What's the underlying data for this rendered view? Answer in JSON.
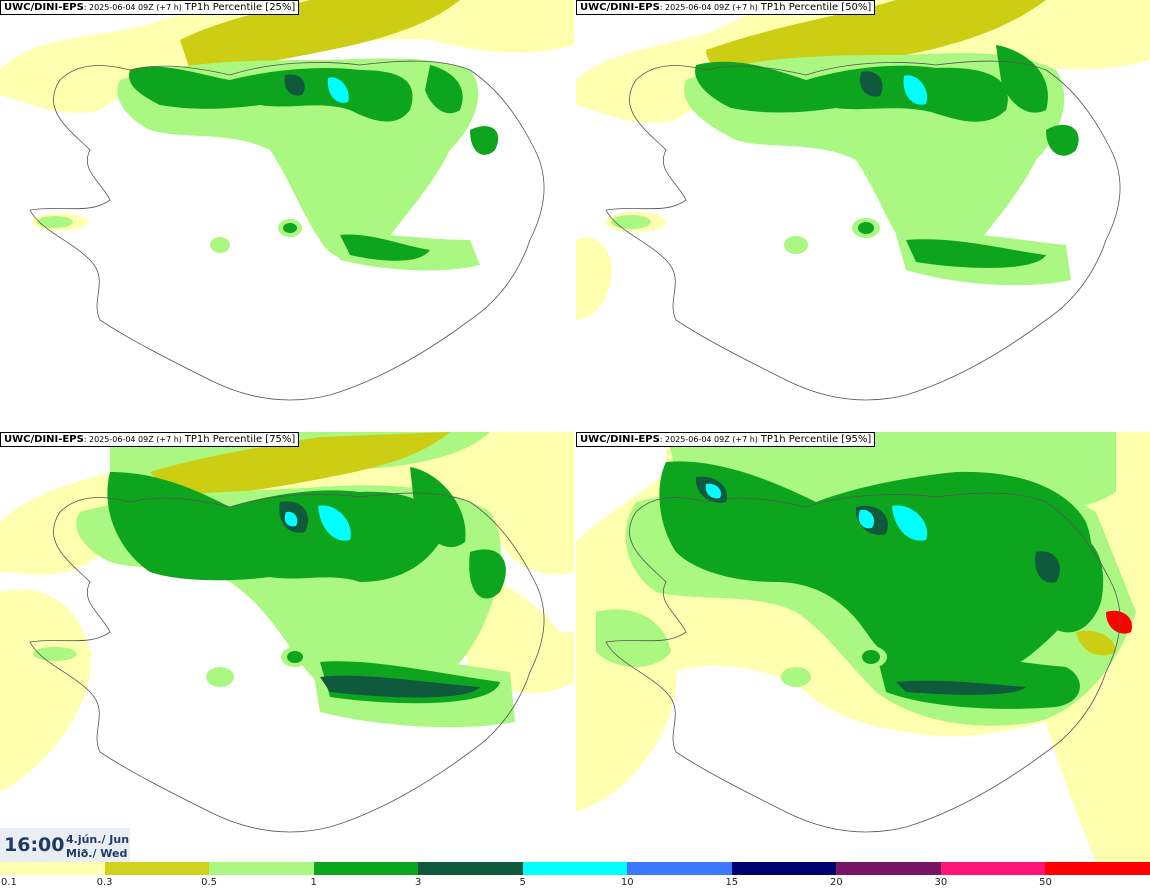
{
  "panels": [
    {
      "source": "UWC/DINI-EPS",
      "meta": ": 2025-06-04 09Z (+7 h)",
      "percentile": "TP1h Percentile [25%]"
    },
    {
      "source": "UWC/DINI-EPS",
      "meta": ": 2025-06-04 09Z (+7 h)",
      "percentile": "TP1h Percentile [50%]"
    },
    {
      "source": "UWC/DINI-EPS",
      "meta": ": 2025-06-04 09Z (+7 h)",
      "percentile": "TP1h Percentile [75%]"
    },
    {
      "source": "UWC/DINI-EPS",
      "meta": ": 2025-06-04 09Z (+7 h)",
      "percentile": "TP1h Percentile [95%]"
    }
  ],
  "valid_time": {
    "time": "16:00",
    "date_line1": "4.jún./ Jun",
    "date_line2": "Mið./ Wed"
  },
  "legend": {
    "ticks": [
      "0.1",
      "0.3",
      "0.5",
      "1",
      "3",
      "5",
      "10",
      "15",
      "20",
      "30",
      "50"
    ],
    "colors": [
      "#ffffb0",
      "#d2d21e",
      "#aaf882",
      "#0ea51e",
      "#0f5a3c",
      "#00ffff",
      "#3c78ff",
      "#00006e",
      "#781464",
      "#ff1478",
      "#ff0000"
    ]
  },
  "colors": {
    "very_light": "#ffffb0",
    "olive": "#cdcd14",
    "light_green": "#aaf882",
    "green": "#0ea51e",
    "dark_green": "#0f5a3c",
    "cyan": "#00ffff",
    "red": "#ff0000",
    "outline": "#555555"
  }
}
